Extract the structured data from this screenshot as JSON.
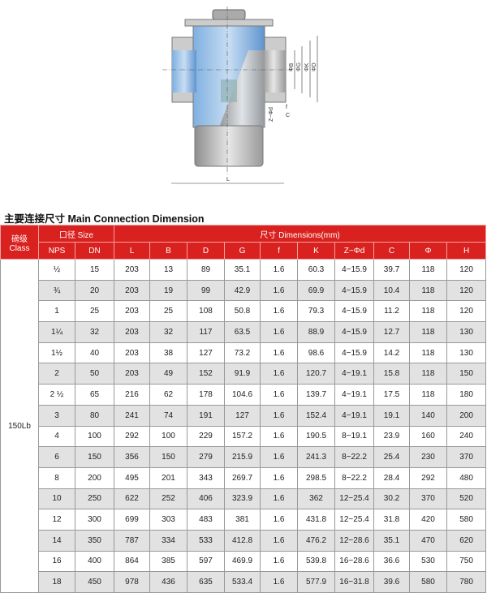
{
  "diagram": {
    "labels": {
      "B": "ΦB",
      "G": "ΦG",
      "K": "ΦK",
      "D": "ΦD",
      "Zd": "Z−Φd",
      "f": "f",
      "C": "C",
      "L": "L"
    }
  },
  "title": "主要连接尺寸 Main Connection Dimension",
  "header": {
    "class": "磅级",
    "class_en": "Class",
    "size": "口径 Size",
    "dims": "尺寸 Dimensions(mm)",
    "cols": [
      "NPS",
      "DN",
      "L",
      "B",
      "D",
      "G",
      "f",
      "K",
      "Z−Φd",
      "C",
      "Φ",
      "H"
    ]
  },
  "class_value": "150Lb",
  "rows": [
    [
      "½",
      "15",
      "203",
      "13",
      "89",
      "35.1",
      "1.6",
      "60.3",
      "4−15.9",
      "39.7",
      "118",
      "120"
    ],
    [
      "¾",
      "20",
      "203",
      "19",
      "99",
      "42.9",
      "1.6",
      "69.9",
      "4−15.9",
      "10.4",
      "118",
      "120"
    ],
    [
      "1",
      "25",
      "203",
      "25",
      "108",
      "50.8",
      "1.6",
      "79.3",
      "4−15.9",
      "11.2",
      "118",
      "120"
    ],
    [
      "1¼",
      "32",
      "203",
      "32",
      "117",
      "63.5",
      "1.6",
      "88.9",
      "4−15.9",
      "12.7",
      "118",
      "130"
    ],
    [
      "1½",
      "40",
      "203",
      "38",
      "127",
      "73.2",
      "1.6",
      "98.6",
      "4−15.9",
      "14.2",
      "118",
      "130"
    ],
    [
      "2",
      "50",
      "203",
      "49",
      "152",
      "91.9",
      "1.6",
      "120.7",
      "4−19.1",
      "15.8",
      "118",
      "150"
    ],
    [
      "2 ½",
      "65",
      "216",
      "62",
      "178",
      "104.6",
      "1.6",
      "139.7",
      "4−19.1",
      "17.5",
      "118",
      "180"
    ],
    [
      "3",
      "80",
      "241",
      "74",
      "191",
      "127",
      "1.6",
      "152.4",
      "4−19.1",
      "19.1",
      "140",
      "200"
    ],
    [
      "4",
      "100",
      "292",
      "100",
      "229",
      "157.2",
      "1.6",
      "190.5",
      "8−19.1",
      "23.9",
      "160",
      "240"
    ],
    [
      "6",
      "150",
      "356",
      "150",
      "279",
      "215.9",
      "1.6",
      "241.3",
      "8−22.2",
      "25.4",
      "230",
      "370"
    ],
    [
      "8",
      "200",
      "495",
      "201",
      "343",
      "269.7",
      "1.6",
      "298.5",
      "8−22.2",
      "28.4",
      "292",
      "480"
    ],
    [
      "10",
      "250",
      "622",
      "252",
      "406",
      "323.9",
      "1.6",
      "362",
      "12−25.4",
      "30.2",
      "370",
      "520"
    ],
    [
      "12",
      "300",
      "699",
      "303",
      "483",
      "381",
      "1.6",
      "431.8",
      "12−25.4",
      "31.8",
      "420",
      "580"
    ],
    [
      "14",
      "350",
      "787",
      "334",
      "533",
      "412.8",
      "1.6",
      "476.2",
      "12−28.6",
      "35.1",
      "470",
      "620"
    ],
    [
      "16",
      "400",
      "864",
      "385",
      "597",
      "469.9",
      "1.6",
      "539.8",
      "16−28.6",
      "36.6",
      "530",
      "750"
    ],
    [
      "18",
      "450",
      "978",
      "436",
      "635",
      "533.4",
      "1.6",
      "577.9",
      "16−31.8",
      "39.6",
      "580",
      "780"
    ]
  ]
}
